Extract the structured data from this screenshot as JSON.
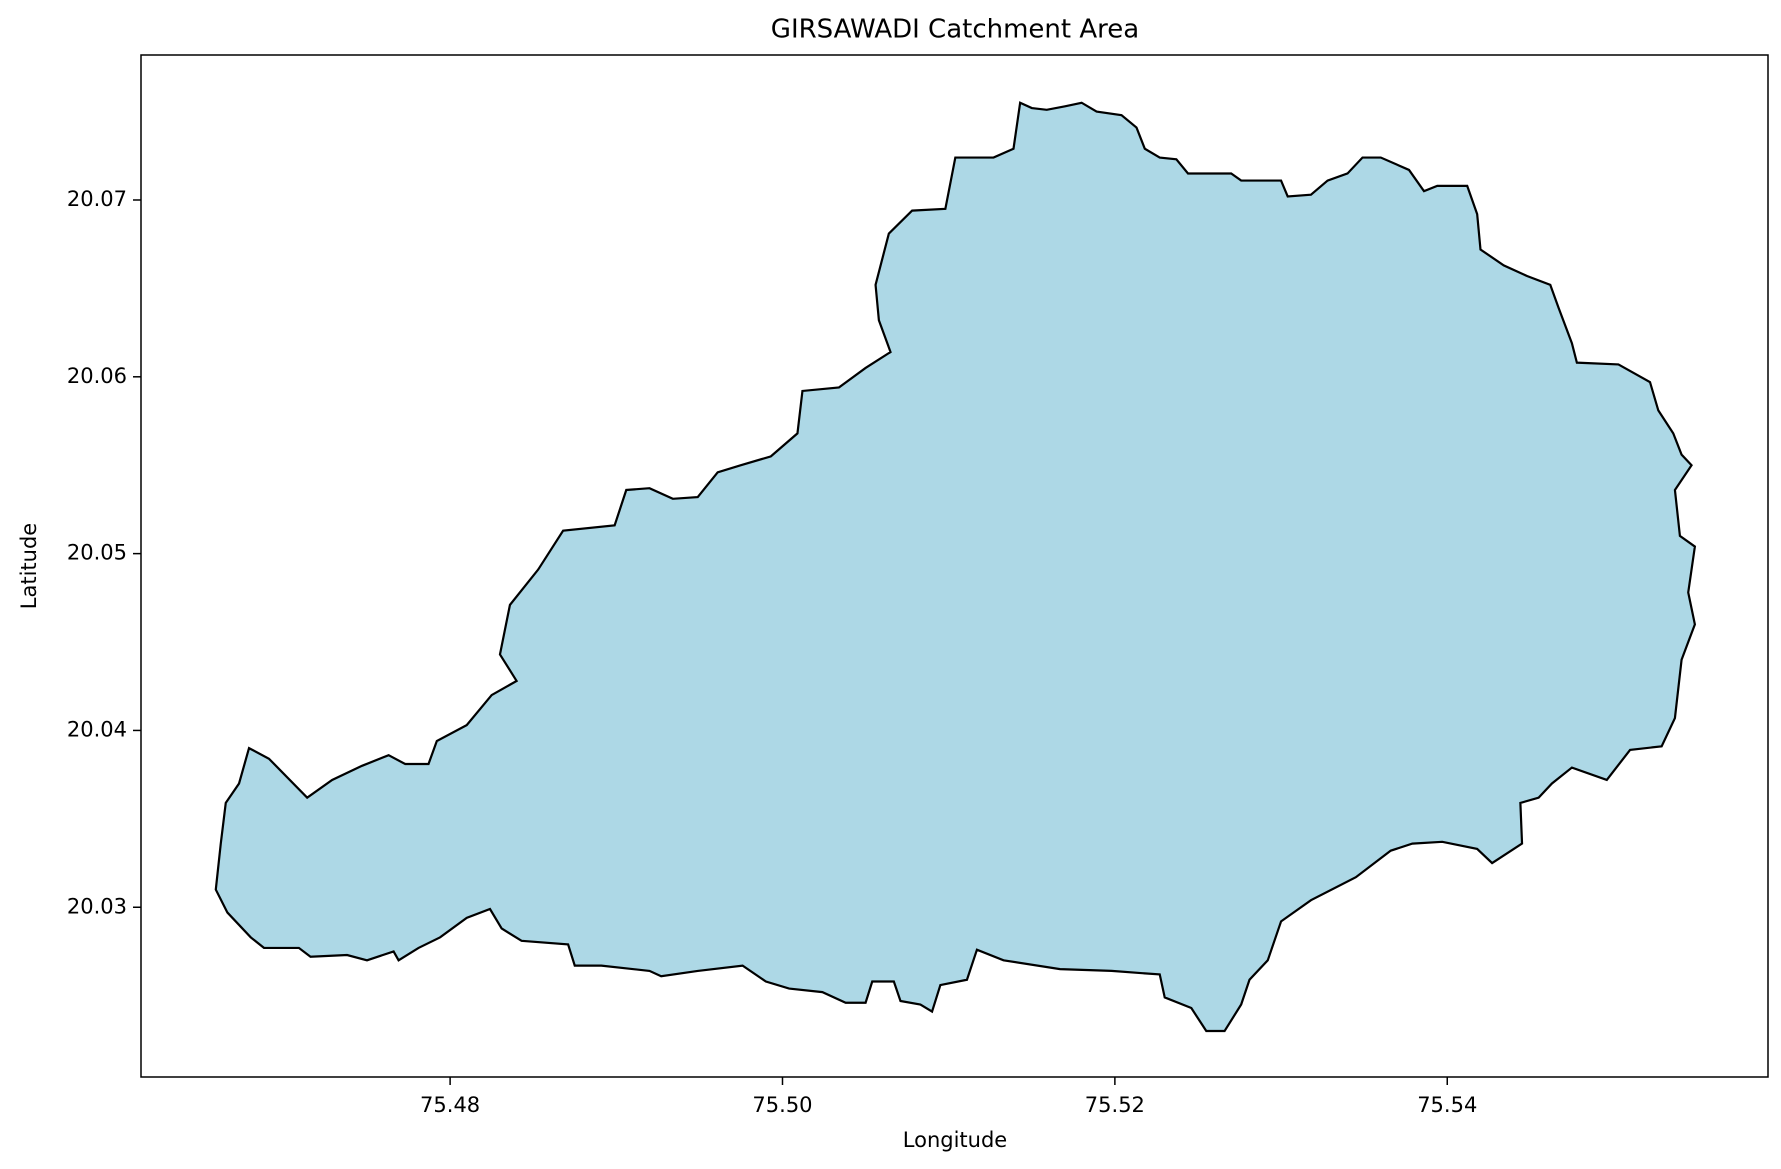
{
  "chart_data": {
    "type": "polygon",
    "title": "GIRSAWADI Catchment Area",
    "xlabel": "Longitude",
    "ylabel": "Latitude",
    "color": "#add8e6",
    "edgecolor": "#000000",
    "grid": false,
    "xlim": [
      75.4614,
      75.5593
    ],
    "ylim": [
      20.0204,
      20.0782
    ],
    "xticks": [
      75.48,
      {
        "value": 75.5,
        "label": "75.50"
      },
      75.52,
      75.54
    ],
    "yticks": [
      20.03,
      20.04,
      20.05,
      20.06,
      20.07
    ],
    "x": [
      75.5143,
      75.515,
      75.5159,
      75.517,
      75.518,
      75.5189,
      75.5204,
      75.5213,
      75.5218,
      75.5227,
      75.5237,
      75.5244,
      75.527,
      75.5276,
      75.53,
      75.5304,
      75.5318,
      75.5328,
      75.534,
      75.5349,
      75.536,
      75.5377,
      75.5386,
      75.5394,
      75.5412,
      75.5418,
      75.542,
      75.5434,
      75.5448,
      75.5462,
      75.5467,
      75.5475,
      75.5478,
      75.5503,
      75.5522,
      75.5527,
      75.5536,
      75.5541,
      75.5547,
      75.5537,
      75.554,
      75.5549,
      75.5545,
      75.5549,
      75.5541,
      75.5537,
      75.5529,
      75.551,
      75.5496,
      75.5475,
      75.5463,
      75.5455,
      75.5444,
      75.5445,
      75.5427,
      75.5418,
      75.5397,
      75.5379,
      75.5366,
      75.5345,
      75.5318,
      75.53,
      75.5292,
      75.5281,
      75.5276,
      75.5266,
      75.5255,
      75.5246,
      75.523,
      75.5227,
      75.5198,
      75.5167,
      75.5133,
      75.5117,
      75.5111,
      75.5095,
      75.509,
      75.5083,
      75.5071,
      75.5067,
      75.5054,
      75.505,
      75.5038,
      75.5024,
      75.5004,
      75.499,
      75.4976,
      75.4949,
      75.4927,
      75.492,
      75.4891,
      75.4875,
      75.4871,
      75.4843,
      75.4831,
      75.4824,
      75.481,
      75.4794,
      75.4781,
      75.4769,
      75.4766,
      75.475,
      75.4738,
      75.4716,
      75.4709,
      75.4688,
      75.468,
      75.4666,
      75.4659,
      75.4662,
      75.4665,
      75.4673,
      75.4679,
      75.4691,
      75.4714,
      75.4729,
      75.4747,
      75.4763,
      75.4773,
      75.4787,
      75.4792,
      75.481,
      75.4825,
      75.484,
      75.483,
      75.4836,
      75.4853,
      75.4868,
      75.4899,
      75.4906,
      75.492,
      75.4934,
      75.4949,
      75.4961,
      75.4975,
      75.4993,
      75.5009,
      75.5012,
      75.5034,
      75.505,
      75.5065,
      75.5058,
      75.5056,
      75.5064,
      75.5078,
      75.5098,
      75.5104,
      75.5127,
      75.5139
    ],
    "y": [
      20.0755,
      20.0752,
      20.0751,
      20.0753,
      20.0755,
      20.075,
      20.0748,
      20.0741,
      20.0729,
      20.0724,
      20.0723,
      20.0715,
      20.0715,
      20.0711,
      20.0711,
      20.0702,
      20.0703,
      20.0711,
      20.0715,
      20.0724,
      20.0724,
      20.0717,
      20.0705,
      20.0708,
      20.0708,
      20.0692,
      20.0672,
      20.0663,
      20.0657,
      20.0652,
      20.0639,
      20.0619,
      20.0608,
      20.0607,
      20.0597,
      20.0581,
      20.0568,
      20.0556,
      20.055,
      20.0536,
      20.051,
      20.0504,
      20.0478,
      20.046,
      20.044,
      20.0407,
      20.0391,
      20.0389,
      20.0372,
      20.0379,
      20.037,
      20.0362,
      20.0359,
      20.0336,
      20.0325,
      20.0333,
      20.0337,
      20.0336,
      20.0332,
      20.0317,
      20.0304,
      20.0292,
      20.027,
      20.0259,
      20.0245,
      20.023,
      20.023,
      20.0243,
      20.0249,
      20.0262,
      20.0264,
      20.0265,
      20.027,
      20.0276,
      20.0259,
      20.0256,
      20.0241,
      20.0245,
      20.0247,
      20.0258,
      20.0258,
      20.0246,
      20.0246,
      20.0252,
      20.0254,
      20.0258,
      20.0267,
      20.0264,
      20.0261,
      20.0264,
      20.0267,
      20.0267,
      20.0279,
      20.0281,
      20.0288,
      20.0299,
      20.0294,
      20.0283,
      20.0277,
      20.027,
      20.0275,
      20.027,
      20.0273,
      20.0272,
      20.0277,
      20.0277,
      20.0283,
      20.0297,
      20.031,
      20.0336,
      20.0359,
      20.037,
      20.039,
      20.0384,
      20.0362,
      20.0372,
      20.038,
      20.0386,
      20.0381,
      20.0381,
      20.0394,
      20.0403,
      20.042,
      20.0428,
      20.0443,
      20.0471,
      20.0491,
      20.0513,
      20.0516,
      20.0536,
      20.0537,
      20.0531,
      20.0532,
      20.0546,
      20.055,
      20.0555,
      20.0568,
      20.0592,
      20.0594,
      20.0605,
      20.0614,
      20.0632,
      20.0652,
      20.0681,
      20.0694,
      20.0695,
      20.0724,
      20.0724,
      20.0729
    ]
  }
}
